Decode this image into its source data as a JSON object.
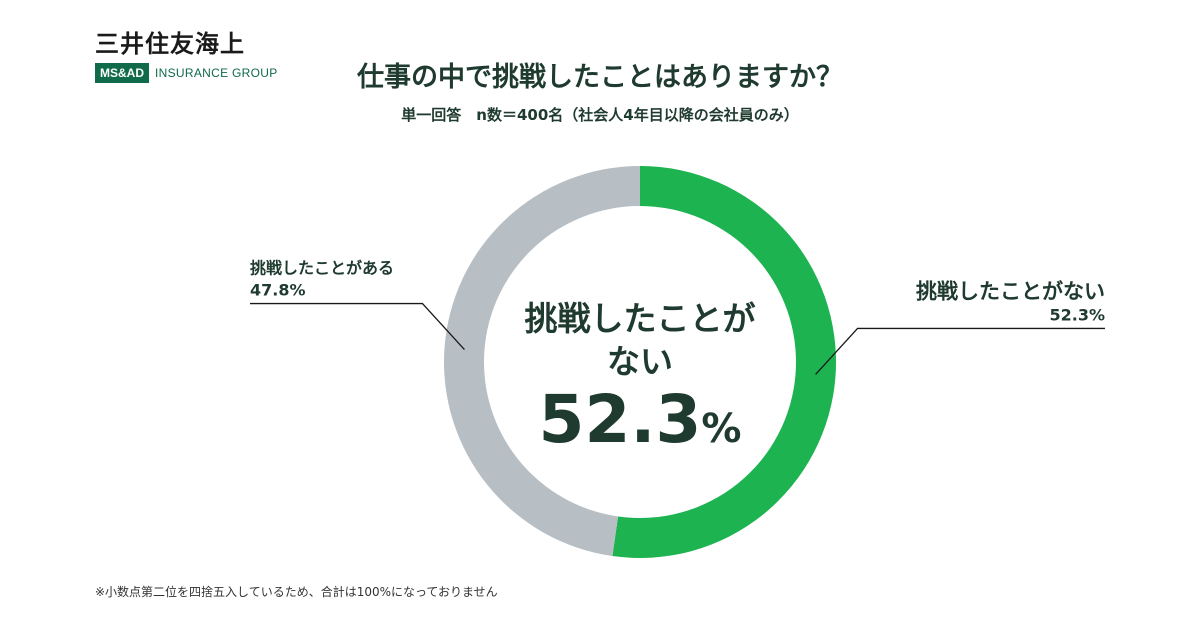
{
  "logo": {
    "company_jp": "三井住友海上",
    "badge": "MS&AD",
    "group": "INSURANCE GROUP"
  },
  "title": "仕事の中で挑戦したことはありますか？",
  "subtitle": "単一回答　n数＝400名（社会人4年目以降の会社員のみ）",
  "chart_data": {
    "type": "pie",
    "style": "donut",
    "title": "仕事の中で挑戦したことはありますか？",
    "subtitle": "単一回答　n数＝400名（社会人4年目以降の会社員のみ）",
    "unit": "%",
    "slices": [
      {
        "label": "挑戦したことがない",
        "value": 52.3,
        "value_label": "52.3%",
        "color": "#1db350",
        "label_position": "right"
      },
      {
        "label": "挑戦したことがある",
        "value": 47.8,
        "value_label": "47.8%",
        "color": "#b7bfc4",
        "label_position": "left"
      }
    ],
    "center": {
      "line1": "挑戦したことが",
      "line2": "ない",
      "number": "52.3",
      "unit": "%"
    }
  },
  "colors": {
    "accent_green": "#1db350",
    "gray": "#b7bfc4",
    "text_dark": "#1f3a2f",
    "brand_green": "#0f6b4a"
  },
  "footnote": "※小数点第二位を四捨五入しているため、合計は100%になっておりません"
}
